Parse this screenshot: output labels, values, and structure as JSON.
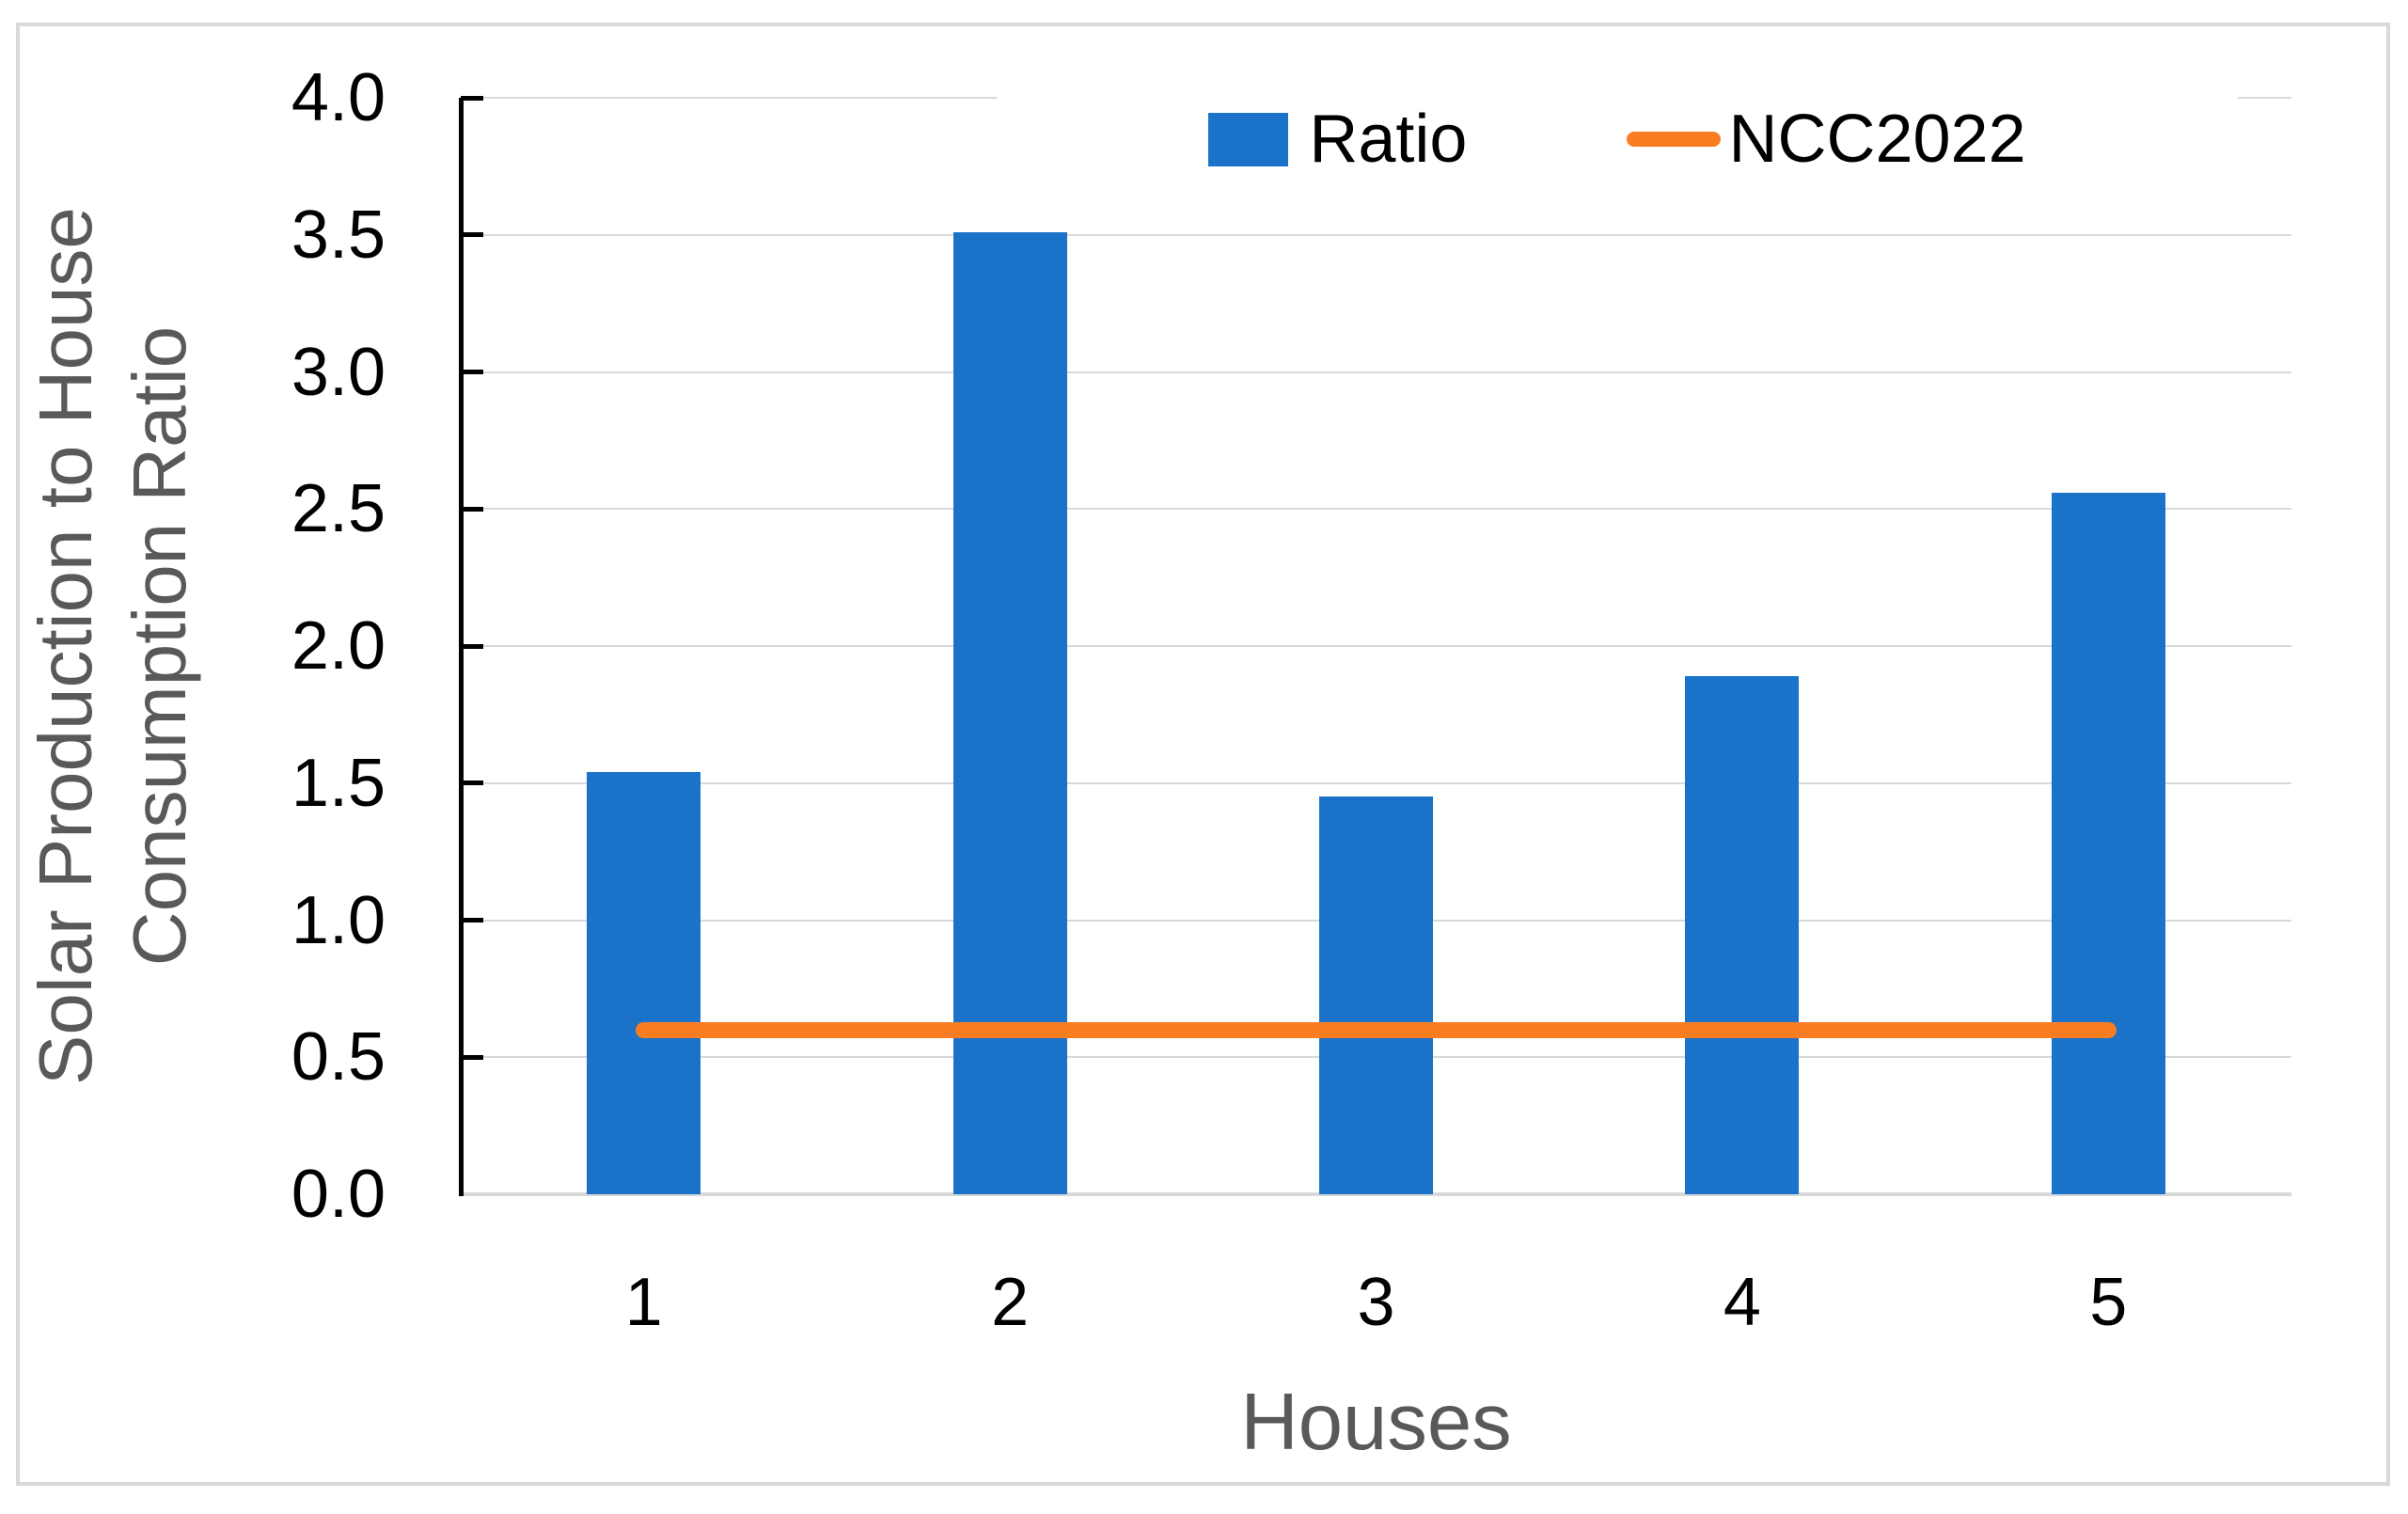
{
  "chart_data": {
    "type": "bar",
    "title": "",
    "categories": [
      "1",
      "2",
      "3",
      "4",
      "5"
    ],
    "series": [
      {
        "name": "Ratio",
        "type": "bar",
        "color": "#1A73C8",
        "values": [
          1.54,
          3.51,
          1.45,
          1.89,
          2.56
        ]
      },
      {
        "name": "NCC2022",
        "type": "line",
        "color": "#FB7D21",
        "values": [
          0.6,
          0.6,
          0.6,
          0.6,
          0.6
        ]
      }
    ],
    "xlabel": "Houses",
    "ylabel": "Solar Production to House Consumption Ratio",
    "ylabel_lines": [
      "Solar Production to House",
      "Consumption Ratio"
    ],
    "ylim": [
      0.0,
      4.0
    ],
    "yticks": [
      0.0,
      0.5,
      1.0,
      1.5,
      2.0,
      2.5,
      3.0,
      3.5,
      4.0
    ],
    "ytick_labels": [
      "0.0",
      "0.5",
      "1.0",
      "1.5",
      "2.0",
      "2.5",
      "3.0",
      "3.5",
      "4.0"
    ],
    "grid": true,
    "legend_position": "top-center"
  },
  "legend": {
    "items": [
      {
        "label": "Ratio",
        "swatch": "square",
        "color": "#1A73C8"
      },
      {
        "label": "NCC2022",
        "swatch": "line",
        "color": "#FB7D21"
      }
    ]
  },
  "colors": {
    "bar_blue": "#1A73C8",
    "line_orange": "#FB7D21",
    "gridline": "#D9D9D9",
    "axis_line": "#000000",
    "tick_text": "#000000",
    "axis_title_text": "#595959",
    "frame_border": "#D9D9D9",
    "background": "#FFFFFF"
  }
}
